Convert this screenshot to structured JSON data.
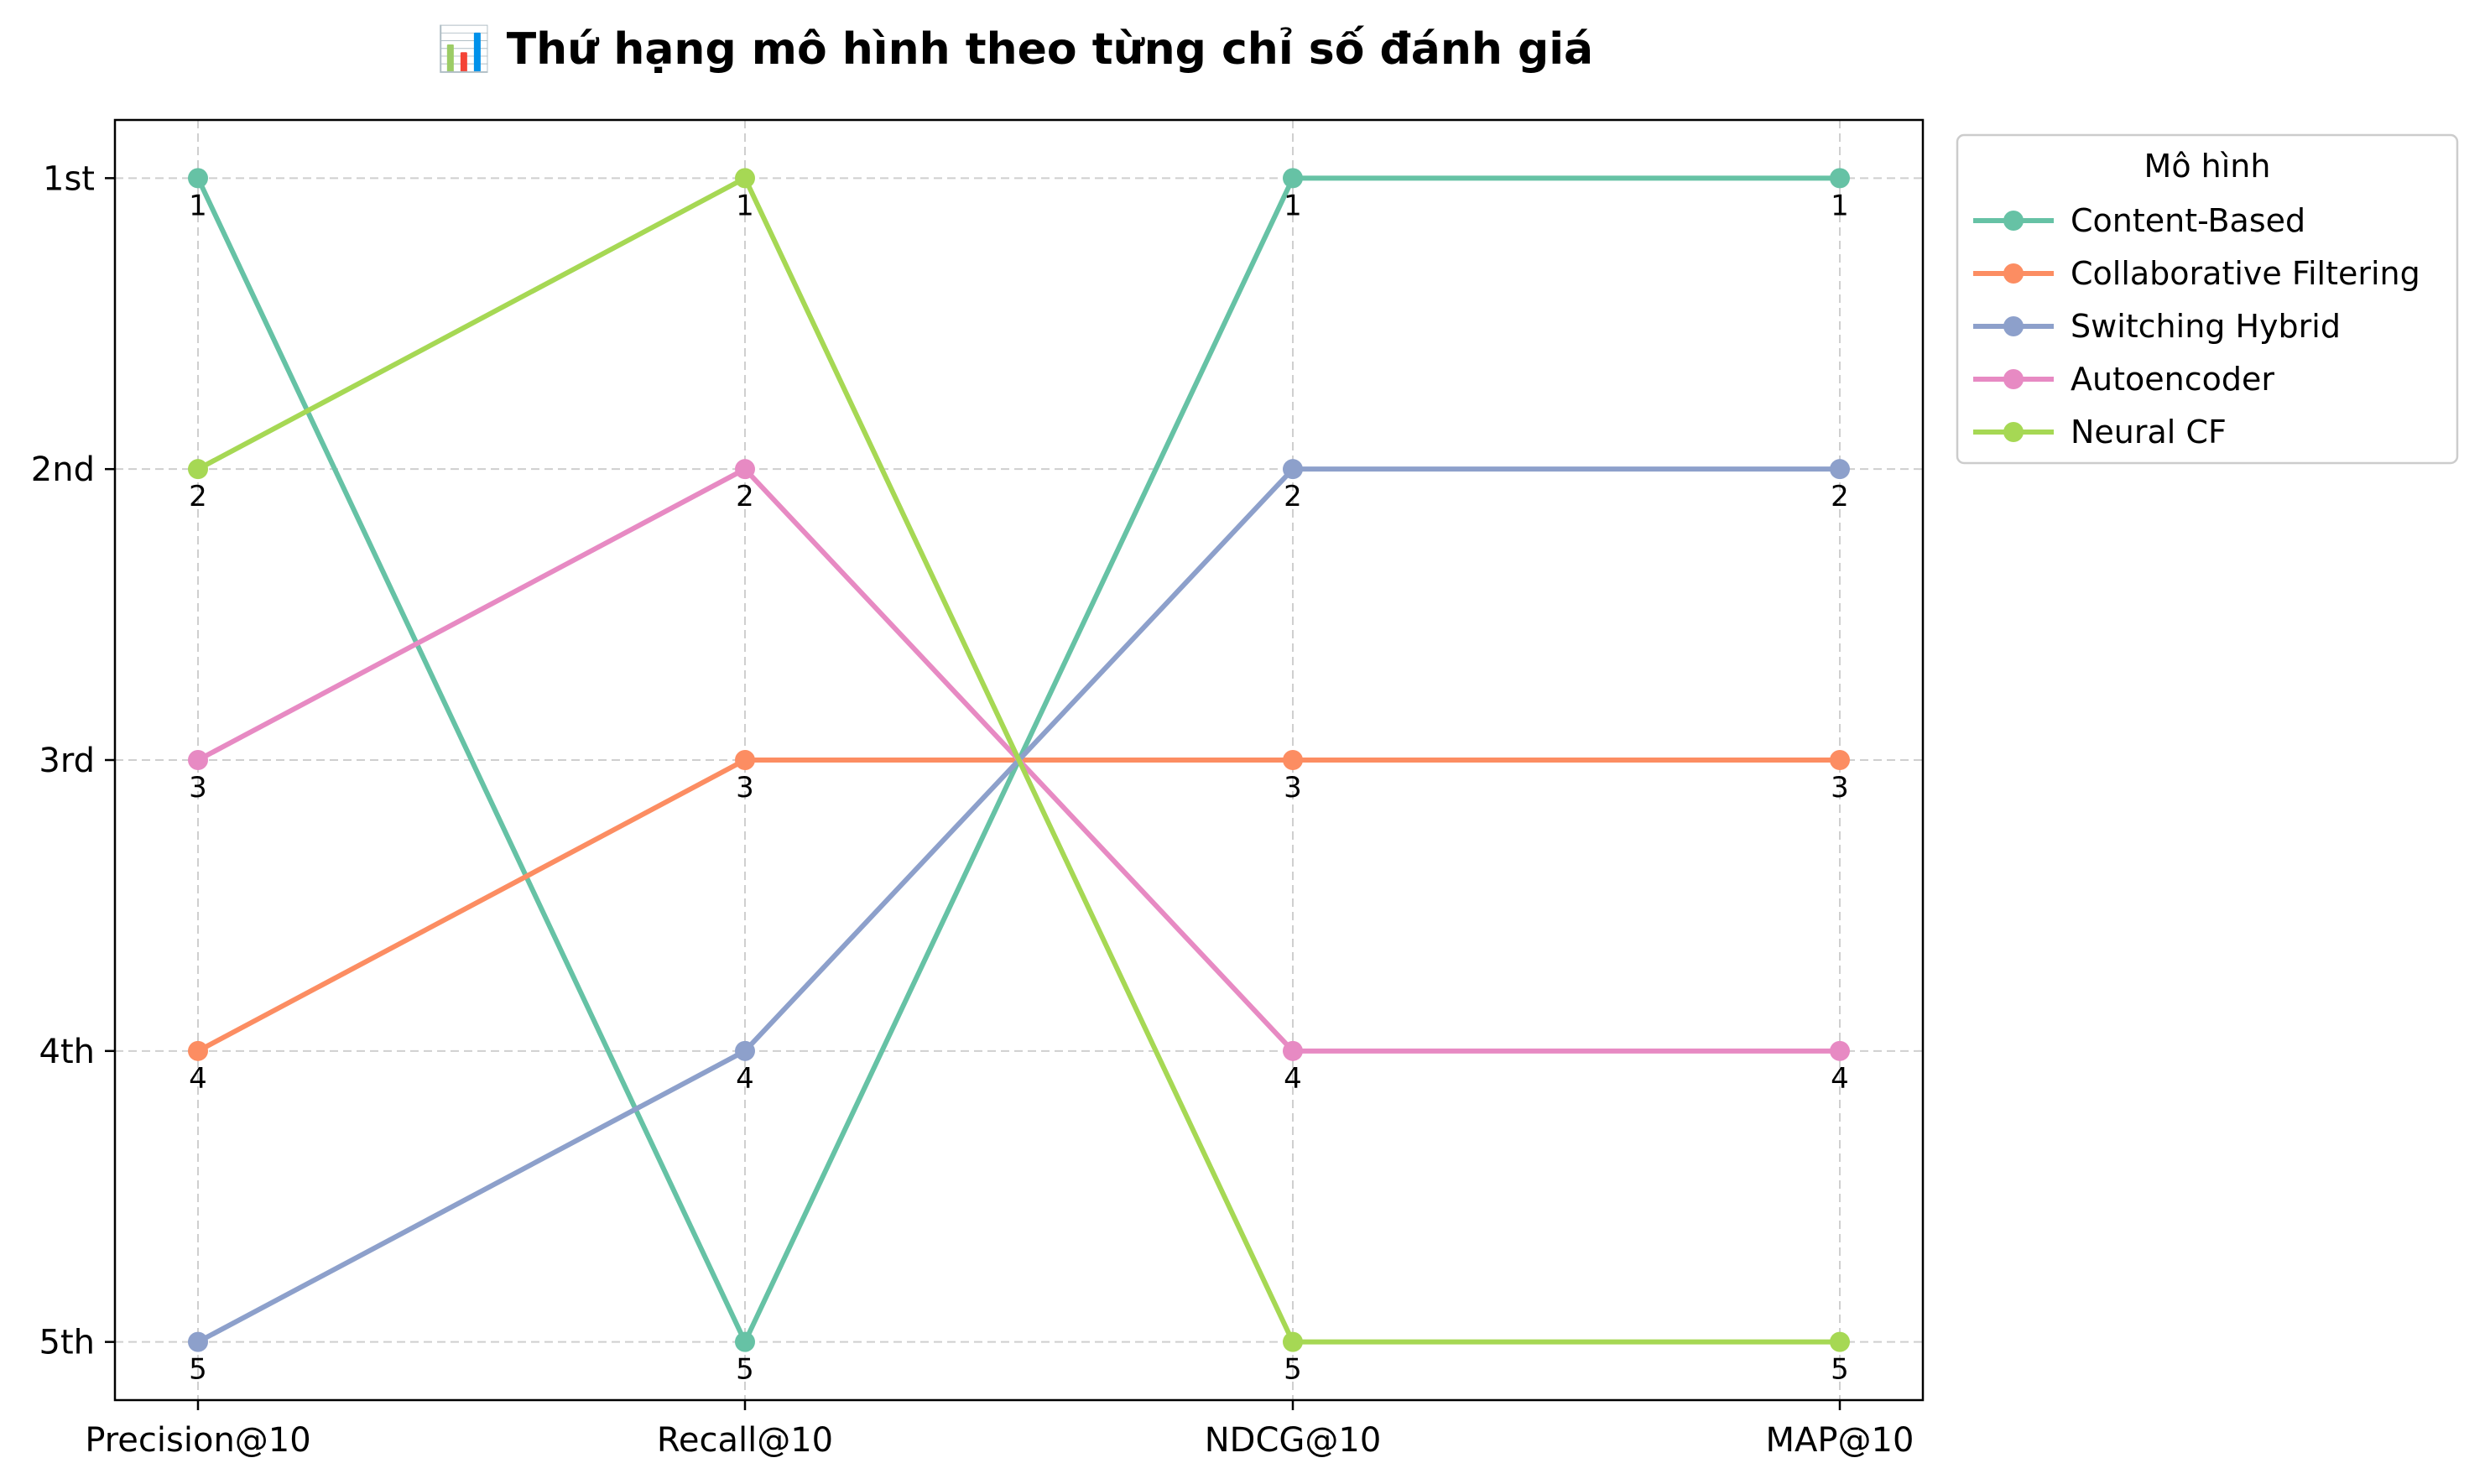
{
  "chart_data": {
    "type": "line",
    "title": "📊 Thứ hạng mô hình theo từng chỉ số đánh giá",
    "title_icon": "bar-chart-icon",
    "categories": [
      "Precision@10",
      "Recall@10",
      "NDCG@10",
      "MAP@10"
    ],
    "y_tick_labels": [
      "1st",
      "2nd",
      "3rd",
      "4th",
      "5th"
    ],
    "ylim": [
      5.2,
      0.8
    ],
    "y_inverted": true,
    "grid": true,
    "legend_title": "Mô hình",
    "legend_position": "outside-top-right",
    "series": [
      {
        "name": "Content-Based",
        "color": "#66c2a5",
        "values": [
          1,
          5,
          1,
          1
        ]
      },
      {
        "name": "Collaborative Filtering",
        "color": "#fc8d62",
        "values": [
          4,
          3,
          3,
          3
        ]
      },
      {
        "name": "Switching Hybrid",
        "color": "#8da0cb",
        "values": [
          5,
          4,
          2,
          2
        ]
      },
      {
        "name": "Autoencoder",
        "color": "#e78ac3",
        "values": [
          3,
          2,
          4,
          4
        ]
      },
      {
        "name": "Neural CF",
        "color": "#a6d854",
        "values": [
          2,
          1,
          5,
          5
        ]
      }
    ]
  }
}
